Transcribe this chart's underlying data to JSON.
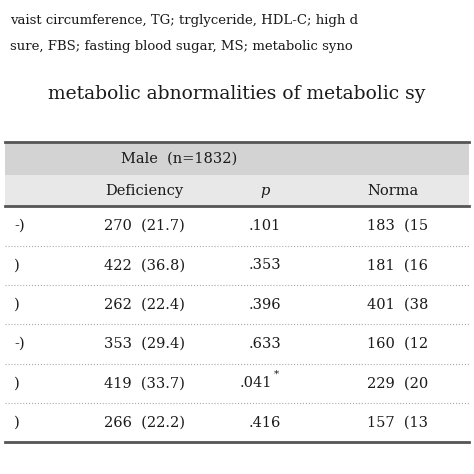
{
  "title_line1": "metabolic abnormalities of metabolic sy",
  "footnote_line1": "vaist circumference, TG; trglyceride, HDL-C; high d",
  "footnote_line2": "sure, FBS; fasting blood sugar, MS; metabolic syno",
  "header_group": "Male  (n=1832)",
  "col_headers": [
    "Deficiency",
    "p",
    "Norma"
  ],
  "rows": [
    {
      "left_partial": "-)",
      "deficiency": "270  (21.7)",
      "p": ".101",
      "normal": "183  (15"
    },
    {
      "left_partial": ")",
      "deficiency": "422  (36.8)",
      "p": ".353",
      "normal": "181  (16"
    },
    {
      "left_partial": ")",
      "deficiency": "262  (22.4)",
      "p": ".396",
      "normal": "401  (38"
    },
    {
      "left_partial": "-)",
      "deficiency": "353  (29.4)",
      "p": ".633",
      "normal": "160  (12"
    },
    {
      "left_partial": ")",
      "deficiency": "419  (33.7)",
      "p": ".041*",
      "normal": "229  (20"
    },
    {
      "left_partial": ")",
      "deficiency": "266  (22.2)",
      "p": ".416",
      "normal": "157  (13"
    }
  ],
  "bg_color": "#ffffff",
  "header_bg": "#d3d3d3",
  "subheader_bg": "#e8e8e8",
  "text_color": "#1a1a1a",
  "border_color": "#555555",
  "dotted_color": "#aaaaaa"
}
